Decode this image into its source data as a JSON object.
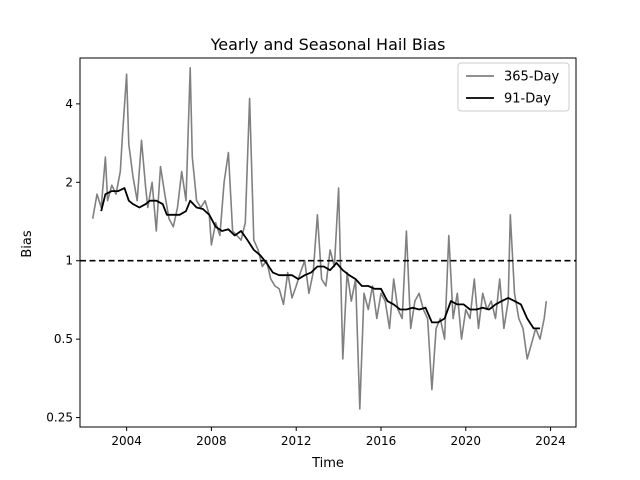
{
  "chart_data": {
    "type": "line",
    "title": "Yearly and Seasonal Hail Bias",
    "xlabel": "Time",
    "ylabel": "Bias",
    "xlim": [
      2001.8,
      2025.2
    ],
    "ylim": [
      0.23,
      6.0
    ],
    "y_scale": "log2",
    "x_ticks": [
      2004,
      2008,
      2012,
      2016,
      2020,
      2024
    ],
    "x_tick_labels": [
      "2004",
      "2008",
      "2012",
      "2016",
      "2020",
      "2024"
    ],
    "y_ticks": [
      0.25,
      0.5,
      1,
      2,
      4
    ],
    "y_tick_labels": [
      "0.25",
      "0.5",
      "1",
      "2",
      "4"
    ],
    "reference_line": {
      "y": 1,
      "style": "dashed",
      "color": "#000000"
    },
    "legend": {
      "position": "top-right",
      "entries": [
        "365-Day",
        "91-Day"
      ]
    },
    "grid": false,
    "series": [
      {
        "name": "365-Day",
        "color": "#808080",
        "x": [
          2002.4,
          2002.6,
          2002.8,
          2003.0,
          2003.1,
          2003.3,
          2003.5,
          2003.7,
          2003.8,
          2004.0,
          2004.1,
          2004.3,
          2004.5,
          2004.7,
          2004.9,
          2005.0,
          2005.2,
          2005.4,
          2005.6,
          2005.8,
          2006.0,
          2006.2,
          2006.4,
          2006.6,
          2006.8,
          2007.0,
          2007.1,
          2007.3,
          2007.5,
          2007.7,
          2007.9,
          2008.0,
          2008.2,
          2008.4,
          2008.6,
          2008.8,
          2009.0,
          2009.2,
          2009.4,
          2009.6,
          2009.8,
          2010.0,
          2010.2,
          2010.4,
          2010.6,
          2010.8,
          2011.0,
          2011.2,
          2011.4,
          2011.6,
          2011.8,
          2012.0,
          2012.2,
          2012.4,
          2012.6,
          2012.8,
          2013.0,
          2013.2,
          2013.4,
          2013.6,
          2013.8,
          2014.0,
          2014.2,
          2014.4,
          2014.6,
          2014.8,
          2015.0,
          2015.2,
          2015.4,
          2015.6,
          2015.8,
          2016.0,
          2016.2,
          2016.4,
          2016.6,
          2016.8,
          2017.0,
          2017.2,
          2017.4,
          2017.6,
          2017.8,
          2018.0,
          2018.2,
          2018.4,
          2018.6,
          2018.8,
          2019.0,
          2019.2,
          2019.4,
          2019.6,
          2019.8,
          2020.0,
          2020.2,
          2020.4,
          2020.6,
          2020.8,
          2021.0,
          2021.2,
          2021.4,
          2021.6,
          2021.8,
          2022.0,
          2022.1,
          2022.3,
          2022.5,
          2022.7,
          2022.9,
          2023.1,
          2023.3,
          2023.5,
          2023.7,
          2023.8
        ],
        "y": [
          1.45,
          1.8,
          1.6,
          2.5,
          1.7,
          1.95,
          1.8,
          2.2,
          3.0,
          5.2,
          2.8,
          2.1,
          1.7,
          2.9,
          1.9,
          1.6,
          2.0,
          1.3,
          2.3,
          1.8,
          1.45,
          1.35,
          1.6,
          2.2,
          1.7,
          5.5,
          2.5,
          1.7,
          1.6,
          1.7,
          1.5,
          1.15,
          1.4,
          1.25,
          2.0,
          2.6,
          1.3,
          1.25,
          1.2,
          1.4,
          4.2,
          1.2,
          1.1,
          0.95,
          1.0,
          0.85,
          0.8,
          0.78,
          0.68,
          0.9,
          0.72,
          0.8,
          0.9,
          1.0,
          0.75,
          0.9,
          1.5,
          0.85,
          0.8,
          1.1,
          0.95,
          1.9,
          0.42,
          0.9,
          0.7,
          0.85,
          0.27,
          0.75,
          0.65,
          0.8,
          0.6,
          0.75,
          0.7,
          0.55,
          0.85,
          0.65,
          0.6,
          1.3,
          0.55,
          0.7,
          0.75,
          0.65,
          0.6,
          0.32,
          0.55,
          0.6,
          0.5,
          1.25,
          0.6,
          0.75,
          0.5,
          0.65,
          0.6,
          0.85,
          0.55,
          0.75,
          0.65,
          0.7,
          0.6,
          0.85,
          0.55,
          0.7,
          1.5,
          0.75,
          0.6,
          0.55,
          0.42,
          0.48,
          0.55,
          0.5,
          0.6,
          0.7
        ]
      },
      {
        "name": "91-Day",
        "color": "#000000",
        "x": [
          2002.8,
          2003.0,
          2003.3,
          2003.6,
          2003.9,
          2004.1,
          2004.3,
          2004.6,
          2004.9,
          2005.1,
          2005.4,
          2005.7,
          2005.9,
          2006.1,
          2006.5,
          2006.8,
          2007.0,
          2007.3,
          2007.6,
          2007.9,
          2008.2,
          2008.5,
          2008.8,
          2009.1,
          2009.4,
          2009.7,
          2010.0,
          2010.3,
          2010.6,
          2010.9,
          2011.2,
          2011.5,
          2011.8,
          2012.1,
          2012.4,
          2012.7,
          2013.0,
          2013.3,
          2013.6,
          2013.9,
          2014.2,
          2014.5,
          2014.8,
          2015.1,
          2015.4,
          2015.7,
          2016.0,
          2016.3,
          2016.6,
          2016.9,
          2017.2,
          2017.5,
          2017.8,
          2018.1,
          2018.4,
          2018.7,
          2019.0,
          2019.3,
          2019.6,
          2019.9,
          2020.2,
          2020.5,
          2020.8,
          2021.1,
          2021.4,
          2021.7,
          2022.0,
          2022.3,
          2022.6,
          2022.9,
          2023.2,
          2023.5
        ],
        "y": [
          1.55,
          1.8,
          1.85,
          1.85,
          1.9,
          1.7,
          1.65,
          1.6,
          1.65,
          1.7,
          1.7,
          1.65,
          1.5,
          1.5,
          1.5,
          1.55,
          1.7,
          1.6,
          1.58,
          1.5,
          1.35,
          1.3,
          1.32,
          1.25,
          1.3,
          1.2,
          1.1,
          1.05,
          0.98,
          0.9,
          0.88,
          0.88,
          0.88,
          0.85,
          0.88,
          0.9,
          0.95,
          0.95,
          0.92,
          0.98,
          0.92,
          0.88,
          0.85,
          0.8,
          0.8,
          0.78,
          0.78,
          0.7,
          0.68,
          0.65,
          0.65,
          0.66,
          0.65,
          0.66,
          0.58,
          0.58,
          0.6,
          0.7,
          0.68,
          0.68,
          0.65,
          0.65,
          0.66,
          0.65,
          0.68,
          0.7,
          0.72,
          0.7,
          0.68,
          0.6,
          0.55,
          0.55
        ]
      }
    ]
  }
}
